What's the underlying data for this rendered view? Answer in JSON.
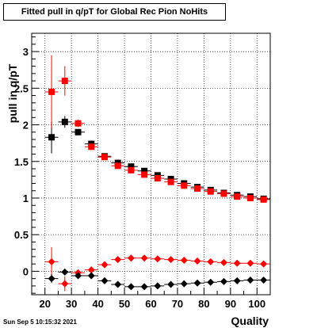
{
  "chart_data": {
    "type": "scatter",
    "title": "Fitted pull in q/pT for Global Rec Pion NoHits",
    "xlabel": "Quality",
    "ylabel": "pull in q/pT",
    "xlim": [
      15,
      105
    ],
    "ylim": [
      -0.32,
      3.25
    ],
    "xticks": [
      20,
      30,
      40,
      50,
      60,
      70,
      80,
      90,
      100
    ],
    "yticks": [
      0,
      0.5,
      1,
      1.5,
      2,
      2.5,
      3
    ],
    "ytick_labels": [
      "0",
      "0.5",
      "1",
      "1.5",
      "2",
      "2.5",
      "3"
    ],
    "grid": true,
    "series": [
      {
        "marker": "square",
        "color": "#000000",
        "x": [
          22.5,
          27.5,
          32.5,
          37.5,
          42.5,
          47.5,
          52.5,
          57.5,
          62.5,
          67.5,
          72.5,
          77.5,
          82.5,
          87.5,
          92.5,
          97.5,
          102.5
        ],
        "y": [
          1.83,
          2.04,
          1.9,
          1.74,
          1.57,
          1.48,
          1.43,
          1.37,
          1.31,
          1.26,
          1.2,
          1.15,
          1.11,
          1.07,
          1.04,
          1.02,
          0.99
        ],
        "yerr": [
          0.22,
          0.08,
          0.04,
          0.03,
          0.02,
          0.02,
          0.02,
          0.02,
          0.02,
          0.02,
          0.02,
          0.02,
          0.02,
          0.02,
          0.02,
          0.02,
          0.02
        ]
      },
      {
        "marker": "square",
        "color": "#ff0000",
        "x": [
          22.5,
          27.5,
          32.5,
          37.5,
          42.5,
          47.5,
          52.5,
          57.5,
          62.5,
          67.5,
          72.5,
          77.5,
          82.5,
          87.5,
          92.5,
          97.5,
          102.5
        ],
        "y": [
          2.45,
          2.6,
          2.02,
          1.7,
          1.56,
          1.44,
          1.38,
          1.32,
          1.27,
          1.22,
          1.17,
          1.13,
          1.09,
          1.06,
          1.02,
          1.0,
          0.98
        ],
        "yerr": [
          0.5,
          0.2,
          0.05,
          0.04,
          0.03,
          0.03,
          0.02,
          0.02,
          0.02,
          0.02,
          0.02,
          0.02,
          0.02,
          0.02,
          0.02,
          0.02,
          0.02
        ]
      },
      {
        "marker": "diamond",
        "color": "#ff0000",
        "x": [
          22.5,
          27.5,
          32.5,
          37.5,
          42.5,
          47.5,
          52.5,
          57.5,
          62.5,
          67.5,
          72.5,
          77.5,
          82.5,
          87.5,
          92.5,
          97.5,
          102.5
        ],
        "y": [
          0.13,
          -0.17,
          -0.02,
          0.02,
          0.09,
          0.16,
          0.18,
          0.18,
          0.17,
          0.16,
          0.15,
          0.14,
          0.13,
          0.12,
          0.11,
          0.11,
          0.1
        ],
        "yerr": [
          0.2,
          0.1,
          0.03,
          0.02,
          0.02,
          0.02,
          0.02,
          0.02,
          0.02,
          0.02,
          0.02,
          0.02,
          0.02,
          0.02,
          0.02,
          0.02,
          0.02
        ]
      },
      {
        "marker": "diamond",
        "color": "#000000",
        "x": [
          22.5,
          27.5,
          32.5,
          37.5,
          42.5,
          47.5,
          52.5,
          57.5,
          62.5,
          67.5,
          72.5,
          77.5,
          82.5,
          87.5,
          92.5,
          97.5,
          102.5
        ],
        "y": [
          -0.1,
          -0.01,
          -0.06,
          -0.06,
          -0.13,
          -0.18,
          -0.21,
          -0.21,
          -0.2,
          -0.18,
          -0.17,
          -0.16,
          -0.15,
          -0.14,
          -0.13,
          -0.12,
          -0.12
        ],
        "yerr": [
          0.06,
          0.04,
          0.02,
          0.02,
          0.02,
          0.02,
          0.02,
          0.02,
          0.02,
          0.02,
          0.02,
          0.02,
          0.02,
          0.02,
          0.02,
          0.02,
          0.02
        ]
      }
    ]
  },
  "timestamp": "Sun Sep  5 10:15:32 2021"
}
